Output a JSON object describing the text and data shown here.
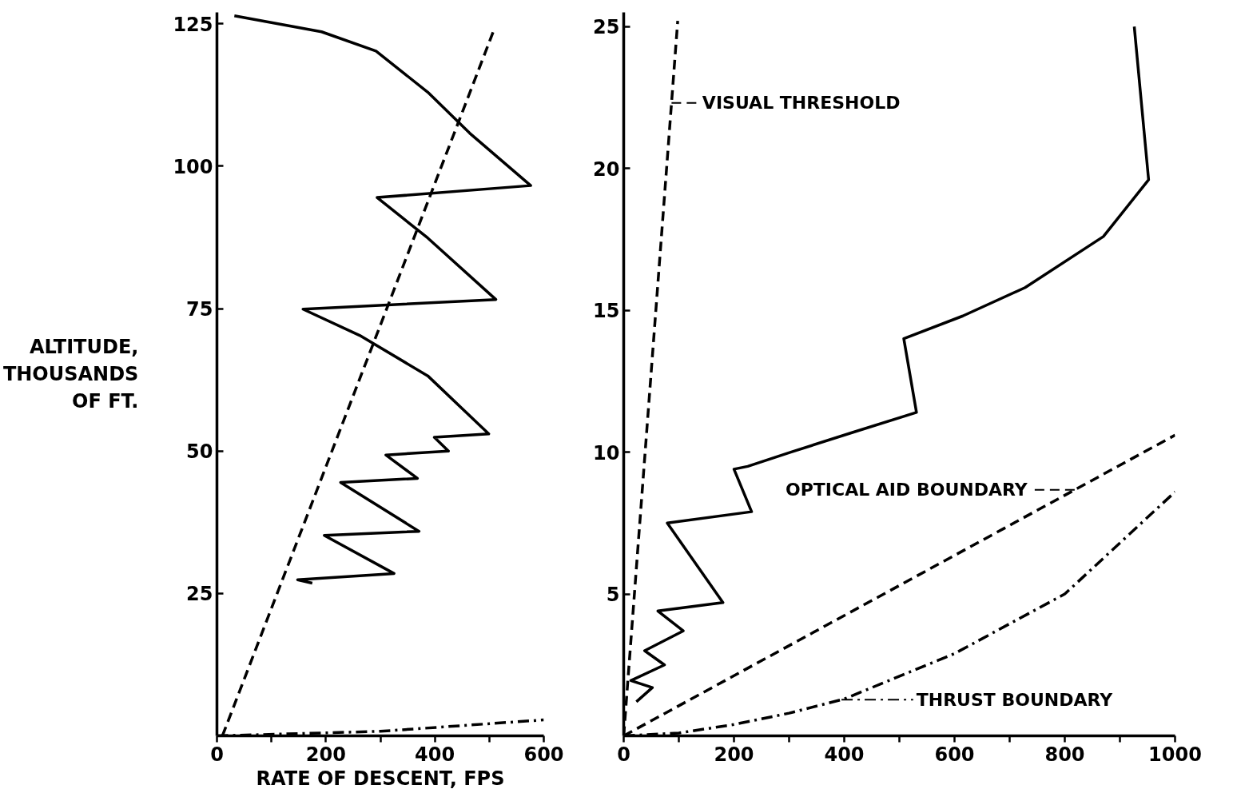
{
  "chart_data": [
    {
      "type": "line",
      "xlabel": "RATE OF DESCENT, FPS",
      "ylabel": "ALTITUDE,\nTHOUSANDS\nOF FT.",
      "xlim": [
        0,
        600
      ],
      "ylim": [
        0,
        127
      ],
      "xticks": [
        0,
        {
          "value": 100,
          "label": null
        },
        200,
        {
          "value": 300,
          "label": null
        },
        400,
        {
          "value": 500,
          "label": null
        },
        600
      ],
      "yticks": [
        25,
        50,
        75,
        100,
        125
      ],
      "grid": false,
      "series": [
        {
          "color": "#000000",
          "line_style": "solid",
          "x": [
            32,
            192,
            292,
            387,
            464,
            576,
            294,
            387,
            512,
            158,
            262,
            387,
            499,
            399,
            425,
            310,
            368,
            227,
            371,
            197,
            325,
            148,
            175
          ],
          "values": [
            126.4,
            123.6,
            120.2,
            113,
            105.8,
            96.6,
            94.5,
            87.4,
            76.6,
            74.9,
            70.3,
            63.2,
            53.0,
            52.4,
            50.0,
            49.3,
            45.2,
            44.5,
            35.9,
            35.2,
            28.5,
            27.4,
            26.8
          ]
        },
        {
          "color": "#000000",
          "line_style": "dashed",
          "x": [
            10,
            510
          ],
          "values": [
            0,
            124.3
          ]
        },
        {
          "color": "#000000",
          "line_style": "dashdot",
          "x": [
            0,
            300,
            600
          ],
          "values": [
            0,
            0.8,
            2.8
          ]
        }
      ]
    },
    {
      "type": "line",
      "xlim": [
        0,
        1000
      ],
      "ylim": [
        0,
        25.5
      ],
      "xticks": [
        0,
        {
          "value": 100,
          "label": null
        },
        200,
        {
          "value": 300,
          "label": null
        },
        400,
        {
          "value": 500,
          "label": null
        },
        600,
        {
          "value": 700,
          "label": null
        },
        800,
        {
          "value": 900,
          "label": null
        },
        1000
      ],
      "yticks": [
        5,
        10,
        15,
        20,
        25
      ],
      "grid": false,
      "legend": "right",
      "series": [
        {
          "color": "#000000",
          "line_style": "solid",
          "x": [
            926,
            952,
            870,
            728,
            615,
            508,
            531,
            416,
            303,
            225,
            200,
            232,
            79,
            180,
            62,
            108,
            38,
            74,
            13,
            52,
            23
          ],
          "values": [
            25.0,
            19.6,
            17.6,
            15.8,
            14.8,
            14.0,
            11.4,
            10.7,
            10.0,
            9.5,
            9.4,
            7.9,
            7.5,
            4.7,
            4.4,
            3.7,
            3.0,
            2.5,
            1.95,
            1.7,
            1.2
          ]
        },
        {
          "name": "VISUAL THRESHOLD",
          "color": "#000000",
          "line_style": "dashed",
          "x": [
            0,
            98
          ],
          "values": [
            0,
            25.2
          ]
        },
        {
          "name": "OPTICAL AID BOUNDARY",
          "color": "#000000",
          "line_style": "dashed",
          "x": [
            0,
            1000
          ],
          "values": [
            0,
            10.6
          ]
        },
        {
          "name": "THRUST BOUNDARY",
          "color": "#000000",
          "line_style": "dashdot",
          "x": [
            0,
            100,
            200,
            300,
            400,
            600,
            800,
            1000
          ],
          "values": [
            0,
            0.1,
            0.4,
            0.8,
            1.3,
            2.9,
            5.0,
            8.6
          ]
        }
      ]
    }
  ]
}
